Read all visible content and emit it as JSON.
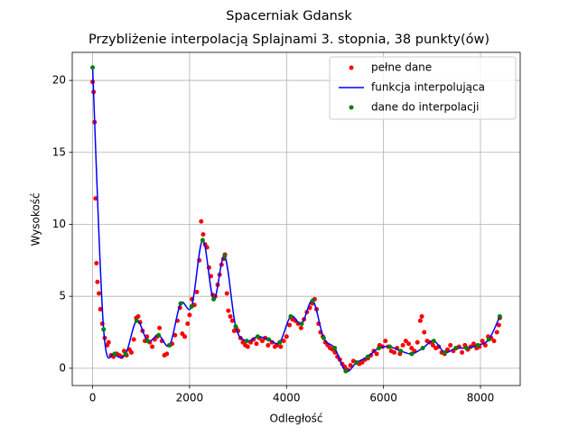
{
  "chart_data": {
    "type": "line",
    "title": "Spacerniak Gdansk",
    "subtitle": "Przybliżenie interpolacją Splajnami 3. stopnia, 38 punkty(ów)",
    "x_label": "Odległość",
    "y_label": "Wysokość",
    "xlim": [
      -420,
      8820
    ],
    "ylim": [
      -1.2,
      21.95
    ],
    "xticks": [
      0,
      2000,
      4000,
      6000,
      8000
    ],
    "yticks": [
      0,
      5,
      10,
      15,
      20
    ],
    "grid": true,
    "legend": "upper right",
    "series": [
      {
        "name": "pełne dane",
        "type": "scatter",
        "color": "#ff0000",
        "x": [
          0,
          20,
          40,
          60,
          80,
          100,
          130,
          160,
          200,
          250,
          300,
          330,
          380,
          430,
          500,
          550,
          600,
          650,
          700,
          760,
          800,
          850,
          900,
          940,
          980,
          1030,
          1080,
          1120,
          1180,
          1230,
          1280,
          1330,
          1380,
          1430,
          1480,
          1530,
          1580,
          1640,
          1700,
          1750,
          1800,
          1850,
          1900,
          1960,
          2000,
          2050,
          2100,
          2150,
          2200,
          2240,
          2280,
          2320,
          2360,
          2400,
          2440,
          2480,
          2530,
          2580,
          2620,
          2660,
          2700,
          2730,
          2770,
          2800,
          2840,
          2880,
          2920,
          2960,
          3000,
          3050,
          3100,
          3150,
          3200,
          3260,
          3320,
          3380,
          3440,
          3500,
          3560,
          3620,
          3700,
          3760,
          3800,
          3880,
          3940,
          4000,
          4060,
          4120,
          4180,
          4240,
          4300,
          4360,
          4420,
          4480,
          4530,
          4580,
          4620,
          4660,
          4700,
          4750,
          4800,
          4850,
          4900,
          4950,
          5000,
          5050,
          5100,
          5150,
          5200,
          5260,
          5320,
          5380,
          5440,
          5500,
          5560,
          5620,
          5680,
          5740,
          5800,
          5860,
          5920,
          5980,
          6040,
          6100,
          6160,
          6220,
          6280,
          6340,
          6400,
          6460,
          6520,
          6580,
          6640,
          6700,
          6760,
          6790,
          6840,
          6900,
          6960,
          7020,
          7080,
          7140,
          7200,
          7260,
          7320,
          7380,
          7440,
          7500,
          7560,
          7620,
          7680,
          7740,
          7800,
          7860,
          7920,
          7980,
          8040,
          8100,
          8160,
          8220,
          8280,
          8340,
          8380,
          8400
        ],
        "values": [
          19.9,
          19.2,
          17.1,
          11.8,
          7.3,
          6.0,
          5.2,
          4.1,
          3.1,
          2.1,
          1.6,
          1.8,
          0.9,
          0.8,
          1.0,
          0.9,
          0.8,
          1.2,
          0.9,
          1.3,
          1.1,
          2.0,
          3.5,
          3.6,
          3.2,
          2.6,
          1.9,
          2.2,
          1.8,
          1.5,
          2.0,
          2.2,
          2.8,
          1.9,
          0.9,
          1.0,
          1.6,
          1.7,
          2.3,
          3.3,
          4.2,
          2.4,
          2.2,
          3.1,
          3.7,
          4.8,
          4.4,
          5.3,
          7.5,
          10.2,
          9.3,
          8.6,
          8.4,
          7.0,
          6.4,
          5.1,
          5.0,
          5.8,
          6.5,
          7.2,
          7.6,
          7.9,
          5.2,
          4.0,
          3.6,
          3.3,
          2.6,
          2.8,
          2.6,
          2.1,
          1.8,
          1.6,
          1.5,
          1.8,
          2.0,
          1.7,
          2.1,
          1.9,
          2.1,
          1.6,
          1.8,
          1.5,
          1.6,
          1.5,
          1.9,
          2.2,
          3.0,
          3.4,
          3.3,
          3.1,
          2.8,
          3.4,
          3.9,
          4.2,
          4.5,
          4.8,
          4.1,
          3.1,
          2.5,
          2.2,
          1.8,
          1.6,
          1.4,
          1.3,
          1.1,
          0.8,
          0.6,
          0.3,
          0.1,
          -0.1,
          0.2,
          0.5,
          0.4,
          0.3,
          0.4,
          0.6,
          0.7,
          0.9,
          1.2,
          1.0,
          1.6,
          1.5,
          1.9,
          1.5,
          1.2,
          1.1,
          1.4,
          1.0,
          1.6,
          1.9,
          1.7,
          1.4,
          1.2,
          1.8,
          3.3,
          3.6,
          2.5,
          1.9,
          1.8,
          1.6,
          1.4,
          1.5,
          1.1,
          1.0,
          1.3,
          1.6,
          1.2,
          1.4,
          1.5,
          1.1,
          1.6,
          1.3,
          1.5,
          1.7,
          1.4,
          1.5,
          1.9,
          1.6,
          2.2,
          2.1,
          1.9,
          2.5,
          3.0,
          3.5
        ]
      },
      {
        "name": "funkcja interpolująca",
        "type": "line",
        "color": "#0000ff",
        "x": [
          0,
          227,
          454,
          681,
          908,
          1135,
          1362,
          1589,
          1816,
          2043,
          2270,
          2497,
          2724,
          2951,
          3178,
          3405,
          3632,
          3859,
          4086,
          4313,
          4540,
          4767,
          4994,
          5221,
          5448,
          5675,
          5902,
          6129,
          6356,
          6583,
          6810,
          7037,
          7264,
          7491,
          7718,
          7945,
          8172,
          8399
        ],
        "values": [
          20.9,
          2.7,
          1.0,
          1.0,
          3.3,
          1.9,
          2.3,
          1.6,
          4.5,
          4.3,
          8.9,
          4.8,
          7.8,
          2.9,
          1.9,
          2.2,
          2.0,
          1.8,
          3.6,
          3.1,
          4.7,
          2.1,
          1.4,
          -0.2,
          0.4,
          0.8,
          1.4,
          1.5,
          1.2,
          1.0,
          1.4,
          1.9,
          1.1,
          1.4,
          1.4,
          1.6,
          2.0,
          3.6
        ]
      },
      {
        "name": "dane do interpolacji",
        "type": "scatter",
        "color": "#008000",
        "x": [
          0,
          227,
          454,
          681,
          908,
          1135,
          1362,
          1589,
          1816,
          2043,
          2270,
          2497,
          2724,
          2951,
          3178,
          3405,
          3632,
          3859,
          4086,
          4313,
          4540,
          4767,
          4994,
          5221,
          5448,
          5675,
          5902,
          6129,
          6356,
          6583,
          6810,
          7037,
          7264,
          7491,
          7718,
          7945,
          8172,
          8399
        ],
        "values": [
          20.9,
          2.7,
          1.0,
          1.0,
          3.3,
          1.9,
          2.3,
          1.6,
          4.5,
          4.3,
          8.9,
          4.8,
          7.8,
          2.9,
          1.9,
          2.2,
          2.0,
          1.8,
          3.6,
          3.1,
          4.7,
          2.1,
          1.4,
          -0.2,
          0.4,
          0.8,
          1.4,
          1.5,
          1.2,
          1.0,
          1.4,
          1.9,
          1.1,
          1.4,
          1.4,
          1.6,
          2.0,
          3.6
        ]
      }
    ]
  }
}
